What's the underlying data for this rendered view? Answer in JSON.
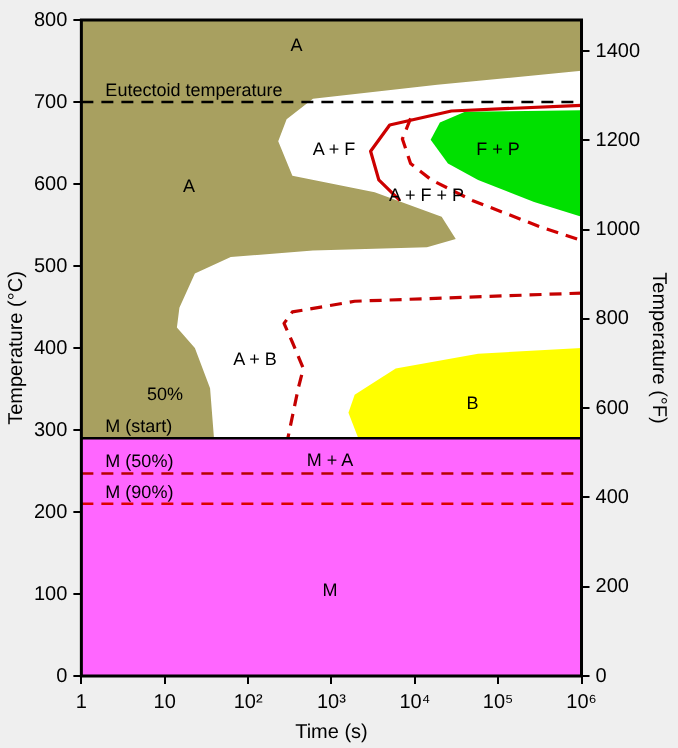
{
  "chart_data": {
    "type": "line",
    "xlabel": "Time (s)",
    "ylabel": "Temperature (°C)",
    "y2label": "Temperature (°F)",
    "log": "x",
    "grid": false,
    "legend": false,
    "xlim": [
      1,
      1000000
    ],
    "xticks": [
      1,
      10,
      {
        "value": 100,
        "label": "10²"
      },
      {
        "value": 1000,
        "label": "10³"
      },
      {
        "value": 10000,
        "label": "10⁴"
      },
      {
        "value": 100000,
        "label": "10⁵"
      },
      {
        "value": 1000000,
        "label": "10⁶"
      }
    ],
    "ylim": [
      0,
      800
    ],
    "yticks": [
      0,
      100,
      200,
      300,
      400,
      500,
      600,
      700,
      800
    ],
    "y2lim": [
      0,
      1470
    ],
    "y2ticks": [
      0,
      200,
      400,
      600,
      800,
      1000,
      1200,
      1400
    ],
    "series": [
      {
        "color": "#cc0000",
        "line_style": "solid",
        "x": [
          1000000,
          27500,
          5000,
          2950,
          3700,
          6600
        ],
        "values": [
          696,
          689,
          672,
          640,
          605,
          580
        ]
      },
      {
        "color": "#d00000",
        "line_style": "dashed",
        "x": [
          8900,
          7100,
          8900,
          15800,
          49000,
          316000,
          1000000
        ],
        "values": [
          680,
          655,
          625,
          605,
          580,
          548,
          531
        ]
      },
      {
        "color": "#c40000",
        "line_style": "dashed",
        "x": [
          1000000,
          1900,
          340,
          270,
          340,
          460,
          400,
          300
        ],
        "values": [
          467,
          457,
          444,
          430,
          407,
          375,
          351,
          290
        ]
      },
      {
        "type": "area",
        "color": "#00e000",
        "x": [
          1000000,
          40000,
          20000,
          15500,
          25000,
          57500,
          270000,
          1000000
        ],
        "values": [
          690,
          688,
          675,
          654,
          625,
          605,
          578,
          560
        ]
      },
      {
        "type": "area",
        "color": "#ffff00",
        "x": [
          1000000,
          57500,
          5900,
          1900,
          1600,
          2100,
          1000000
        ],
        "values": [
          400,
          393,
          375,
          343,
          321,
          290,
          290
        ]
      },
      {
        "type": "area",
        "color": "#a8a060",
        "x": [
          1,
          1,
          1000000,
          1000000,
          18600,
          600,
          290,
          230,
          340,
          3300,
          21000,
          31000,
          14000,
          600,
          62,
          23,
          15,
          14,
          23,
          35,
          39
        ],
        "values": [
          290,
          800,
          800,
          738,
          721,
          704,
          679,
          652,
          610,
          590,
          560,
          533,
          523,
          519,
          511,
          491,
          449,
          425,
          400,
          351,
          290
        ]
      }
    ],
    "bands": [
      {
        "axis": "y",
        "from": 0,
        "to": 290,
        "color": "#ff66ff"
      }
    ],
    "ref_lines": [
      {
        "axis": "y",
        "value": 290,
        "label": "M (start)",
        "color": "#000000",
        "line_style": "solid"
      },
      {
        "axis": "y",
        "value": 700,
        "label": "Eutectoid temperature",
        "color": "#000000",
        "line_style": "dashed"
      },
      {
        "axis": "y",
        "value": 247,
        "label": "M (50%)",
        "color": "#b80000",
        "line_style": "dashed"
      },
      {
        "axis": "y",
        "value": 210,
        "label": "M (90%)",
        "color": "#dc0000",
        "line_style": "dashed"
      }
    ],
    "annotations": [
      "A",
      "A",
      "A + F",
      "A + F + P",
      "F + P",
      "A + B",
      "50%",
      "B",
      "M + A",
      "M"
    ]
  }
}
